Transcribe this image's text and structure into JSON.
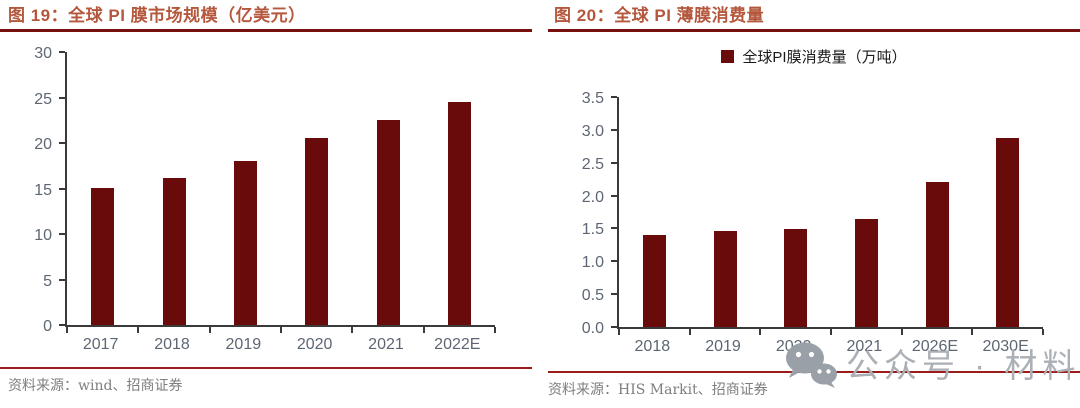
{
  "colors": {
    "bar": "#6a0b0b",
    "title": "#b5573c",
    "title_rule": "#7a1111",
    "source_rule": "#9c1b1b",
    "axis_line": "#3a3a3a",
    "axis_label": "#5d6673",
    "source_text": "#7e7e7e",
    "watermark": "#aab0b6"
  },
  "chart_data": [
    {
      "type": "bar",
      "title": "图 19：全球 PI 膜市场规模（亿美元）",
      "source": "资料来源：wind、招商证券",
      "categories": [
        "2017",
        "2018",
        "2019",
        "2020",
        "2021",
        "2022E"
      ],
      "values": [
        15.1,
        16.2,
        18.0,
        20.5,
        22.5,
        24.5
      ],
      "ylim": [
        0,
        30
      ],
      "yticks": [
        0,
        5,
        10,
        15,
        20,
        25,
        30
      ],
      "ytick_labels": [
        "0",
        "5",
        "10",
        "15",
        "20",
        "25",
        "30"
      ],
      "bar_color": "#6a0b0b",
      "grid": false,
      "legend": null,
      "xlabel": "",
      "ylabel": ""
    },
    {
      "type": "bar",
      "title": "图 20：全球 PI 薄膜消费量",
      "source": "资料来源：HIS Markit、招商证券",
      "legend": "全球PI膜消费量（万吨）",
      "legend_position": "top-center",
      "categories": [
        "2018",
        "2019",
        "2020",
        "2021",
        "2026E",
        "2030E"
      ],
      "values": [
        1.4,
        1.46,
        1.49,
        1.64,
        2.21,
        2.87
      ],
      "ylim": [
        0,
        3.5
      ],
      "yticks": [
        0,
        0.5,
        1.0,
        1.5,
        2.0,
        2.5,
        3.0,
        3.5
      ],
      "ytick_labels": [
        "0.0",
        "0.5",
        "1.0",
        "1.5",
        "2.0",
        "2.5",
        "3.0",
        "3.5"
      ],
      "bar_color": "#6a0b0b",
      "grid": false,
      "xlabel": "",
      "ylabel": ""
    }
  ],
  "watermark": {
    "icon": "wechat-icon",
    "text": "公众号 · 材料圈"
  }
}
